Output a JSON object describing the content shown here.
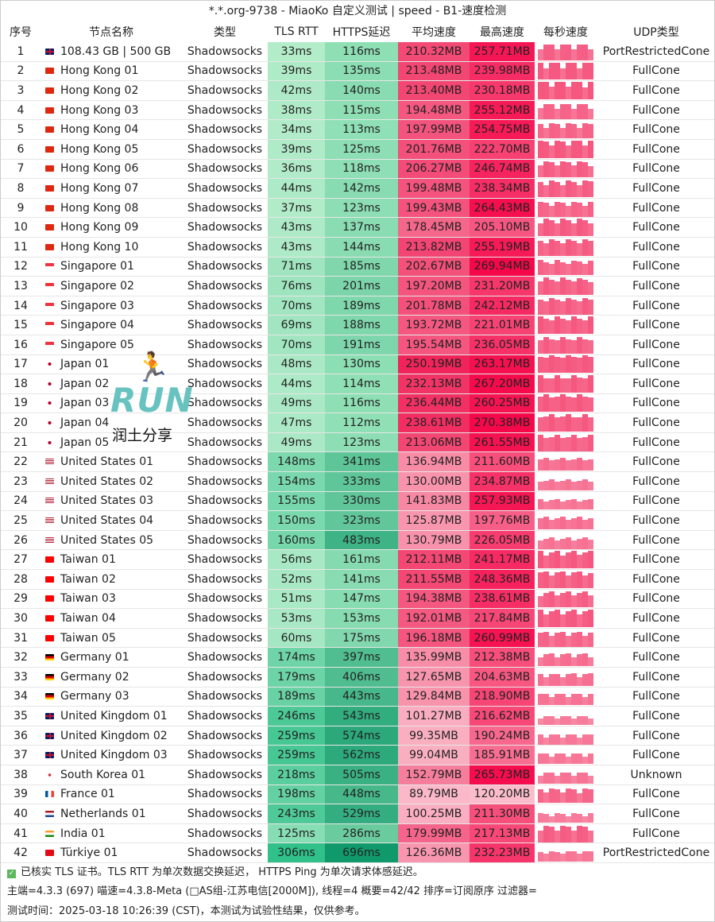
{
  "window": {
    "title": "*.*.org-9738 - MiaoKo 自定义测试 | speed - B1-速度检测"
  },
  "columns": [
    "序号",
    "节点名称",
    "类型",
    "TLS RTT",
    "HTTPS延迟",
    "平均速度",
    "最高速度",
    "每秒速度",
    "UDP类型"
  ],
  "rows": [
    [
      "1",
      "gb",
      "108.43 GB | 500 GB",
      "Shadowsocks",
      "33ms",
      "116ms",
      "210.32MB",
      "257.71MB",
      "PortRestrictedCone"
    ],
    [
      "2",
      "hk",
      "Hong Kong 01",
      "Shadowsocks",
      "39ms",
      "135ms",
      "213.48MB",
      "239.98MB",
      "FullCone"
    ],
    [
      "3",
      "hk",
      "Hong Kong 02",
      "Shadowsocks",
      "42ms",
      "140ms",
      "213.40MB",
      "230.18MB",
      "FullCone"
    ],
    [
      "4",
      "hk",
      "Hong Kong 03",
      "Shadowsocks",
      "38ms",
      "115ms",
      "194.48MB",
      "255.12MB",
      "FullCone"
    ],
    [
      "5",
      "hk",
      "Hong Kong 04",
      "Shadowsocks",
      "34ms",
      "113ms",
      "197.99MB",
      "254.75MB",
      "FullCone"
    ],
    [
      "6",
      "hk",
      "Hong Kong 05",
      "Shadowsocks",
      "39ms",
      "125ms",
      "201.76MB",
      "222.70MB",
      "FullCone"
    ],
    [
      "7",
      "hk",
      "Hong Kong 06",
      "Shadowsocks",
      "36ms",
      "118ms",
      "206.27MB",
      "246.74MB",
      "FullCone"
    ],
    [
      "8",
      "hk",
      "Hong Kong 07",
      "Shadowsocks",
      "44ms",
      "142ms",
      "199.48MB",
      "238.34MB",
      "FullCone"
    ],
    [
      "9",
      "hk",
      "Hong Kong 08",
      "Shadowsocks",
      "37ms",
      "123ms",
      "199.43MB",
      "264.43MB",
      "FullCone"
    ],
    [
      "10",
      "hk",
      "Hong Kong 09",
      "Shadowsocks",
      "43ms",
      "137ms",
      "178.45MB",
      "205.10MB",
      "FullCone"
    ],
    [
      "11",
      "hk",
      "Hong Kong 10",
      "Shadowsocks",
      "43ms",
      "144ms",
      "213.82MB",
      "255.19MB",
      "FullCone"
    ],
    [
      "12",
      "sg",
      "Singapore 01",
      "Shadowsocks",
      "71ms",
      "185ms",
      "202.67MB",
      "269.94MB",
      "FullCone"
    ],
    [
      "13",
      "sg",
      "Singapore 02",
      "Shadowsocks",
      "76ms",
      "201ms",
      "197.20MB",
      "231.20MB",
      "FullCone"
    ],
    [
      "14",
      "sg",
      "Singapore 03",
      "Shadowsocks",
      "70ms",
      "189ms",
      "201.78MB",
      "242.12MB",
      "FullCone"
    ],
    [
      "15",
      "sg",
      "Singapore 04",
      "Shadowsocks",
      "69ms",
      "188ms",
      "193.72MB",
      "221.01MB",
      "FullCone"
    ],
    [
      "16",
      "sg",
      "Singapore 05",
      "Shadowsocks",
      "70ms",
      "191ms",
      "195.54MB",
      "236.05MB",
      "FullCone"
    ],
    [
      "17",
      "jp",
      "Japan 01",
      "Shadowsocks",
      "48ms",
      "130ms",
      "250.19MB",
      "263.17MB",
      "FullCone"
    ],
    [
      "18",
      "jp",
      "Japan 02",
      "Shadowsocks",
      "44ms",
      "114ms",
      "232.13MB",
      "267.20MB",
      "FullCone"
    ],
    [
      "19",
      "jp",
      "Japan 03",
      "Shadowsocks",
      "49ms",
      "116ms",
      "236.44MB",
      "260.25MB",
      "FullCone"
    ],
    [
      "20",
      "jp",
      "Japan 04",
      "Shadowsocks",
      "47ms",
      "112ms",
      "238.61MB",
      "270.38MB",
      "FullCone"
    ],
    [
      "21",
      "jp",
      "Japan 05",
      "Shadowsocks",
      "49ms",
      "123ms",
      "213.06MB",
      "261.55MB",
      "FullCone"
    ],
    [
      "22",
      "us",
      "United States 01",
      "Shadowsocks",
      "148ms",
      "341ms",
      "136.94MB",
      "211.60MB",
      "FullCone"
    ],
    [
      "23",
      "us",
      "United States 02",
      "Shadowsocks",
      "154ms",
      "333ms",
      "130.00MB",
      "234.87MB",
      "FullCone"
    ],
    [
      "24",
      "us",
      "United States 03",
      "Shadowsocks",
      "155ms",
      "330ms",
      "141.83MB",
      "257.93MB",
      "FullCone"
    ],
    [
      "25",
      "us",
      "United States 04",
      "Shadowsocks",
      "150ms",
      "323ms",
      "125.87MB",
      "197.76MB",
      "FullCone"
    ],
    [
      "26",
      "us",
      "United States 05",
      "Shadowsocks",
      "160ms",
      "483ms",
      "130.79MB",
      "226.05MB",
      "FullCone"
    ],
    [
      "27",
      "tw",
      "Taiwan 01",
      "Shadowsocks",
      "56ms",
      "161ms",
      "212.11MB",
      "241.17MB",
      "FullCone"
    ],
    [
      "28",
      "tw",
      "Taiwan 02",
      "Shadowsocks",
      "52ms",
      "141ms",
      "211.55MB",
      "248.36MB",
      "FullCone"
    ],
    [
      "29",
      "tw",
      "Taiwan 03",
      "Shadowsocks",
      "51ms",
      "147ms",
      "194.38MB",
      "238.61MB",
      "FullCone"
    ],
    [
      "30",
      "tw",
      "Taiwan 04",
      "Shadowsocks",
      "53ms",
      "153ms",
      "192.01MB",
      "217.84MB",
      "FullCone"
    ],
    [
      "31",
      "tw",
      "Taiwan 05",
      "Shadowsocks",
      "60ms",
      "175ms",
      "196.18MB",
      "260.99MB",
      "FullCone"
    ],
    [
      "32",
      "de",
      "Germany 01",
      "Shadowsocks",
      "174ms",
      "397ms",
      "135.99MB",
      "212.38MB",
      "FullCone"
    ],
    [
      "33",
      "de",
      "Germany 02",
      "Shadowsocks",
      "179ms",
      "406ms",
      "127.65MB",
      "204.63MB",
      "FullCone"
    ],
    [
      "34",
      "de",
      "Germany 03",
      "Shadowsocks",
      "189ms",
      "443ms",
      "129.84MB",
      "218.90MB",
      "FullCone"
    ],
    [
      "35",
      "gb",
      "United Kingdom 01",
      "Shadowsocks",
      "246ms",
      "543ms",
      "101.27MB",
      "216.62MB",
      "FullCone"
    ],
    [
      "36",
      "gb",
      "United Kingdom 02",
      "Shadowsocks",
      "259ms",
      "574ms",
      "99.35MB",
      "190.24MB",
      "FullCone"
    ],
    [
      "37",
      "gb",
      "United Kingdom 03",
      "Shadowsocks",
      "259ms",
      "562ms",
      "99.04MB",
      "185.91MB",
      "FullCone"
    ],
    [
      "38",
      "kr",
      "South Korea 01",
      "Shadowsocks",
      "218ms",
      "505ms",
      "152.79MB",
      "265.73MB",
      "Unknown"
    ],
    [
      "39",
      "fr",
      "France 01",
      "Shadowsocks",
      "198ms",
      "448ms",
      "89.79MB",
      "120.20MB",
      "FullCone"
    ],
    [
      "40",
      "nl",
      "Netherlands 01",
      "Shadowsocks",
      "243ms",
      "529ms",
      "100.25MB",
      "211.30MB",
      "FullCone"
    ],
    [
      "41",
      "in",
      "India 01",
      "Shadowsocks",
      "125ms",
      "286ms",
      "179.99MB",
      "217.13MB",
      "FullCone"
    ],
    [
      "42",
      "tr",
      "Türkiye 01",
      "Shadowsocks",
      "306ms",
      "696ms",
      "126.36MB",
      "232.23MB",
      "PortRestrictedCone"
    ]
  ],
  "footer": {
    "line1": "已核实 TLS 证书。TLS RTT 为单次数据交换延迟， HTTPS Ping 为单次请求体感延迟。",
    "line2": "主端=4.3.3 (697) 喵速=4.3.8-Meta (□AS组-江苏电信[2000M]), 线程=4 概要=42/42 排序=订阅原序 过滤器=",
    "line3": "测试时间：2025-03-18 10:26:39 (CST)，本测试为试验性结果，仅供参考。"
  },
  "watermark": {
    "logo_text": "RUN",
    "caption": "润土分享"
  },
  "colors": {
    "tls_low": "#b4ecca",
    "tls_high": "#2ebf88",
    "https_low": "#90e0b6",
    "https_high": "#0f9a6a",
    "avg_high": "#f0245a",
    "avg_low": "#fbbccb",
    "max_high": "#f5084a",
    "max_low": "#fbc3cf",
    "spark": "#f5577f"
  }
}
